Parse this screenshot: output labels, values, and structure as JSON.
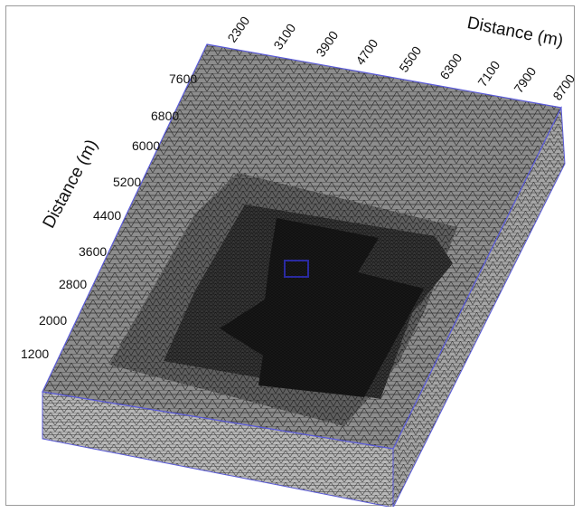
{
  "figure": {
    "top_axis": {
      "title": "Distance (m)",
      "ticks": [
        "2300",
        "3100",
        "3900",
        "4700",
        "5500",
        "6300",
        "7100",
        "7900",
        "8700"
      ]
    },
    "left_axis": {
      "title": "Distance (m)",
      "ticks": [
        "7600",
        "6800",
        "6000",
        "5200",
        "4400",
        "3600",
        "2800",
        "2000",
        "1200"
      ]
    },
    "colors": {
      "outline": "#5a5ad8",
      "mesh_coarse": "#8a8a8a",
      "mesh_medium": "#5c5c5c",
      "mesh_fine": "#2e2e2e",
      "mesh_core": "#0e0e0e",
      "side_face": "#b4b4b4",
      "marker": "#2a2aa0"
    }
  }
}
